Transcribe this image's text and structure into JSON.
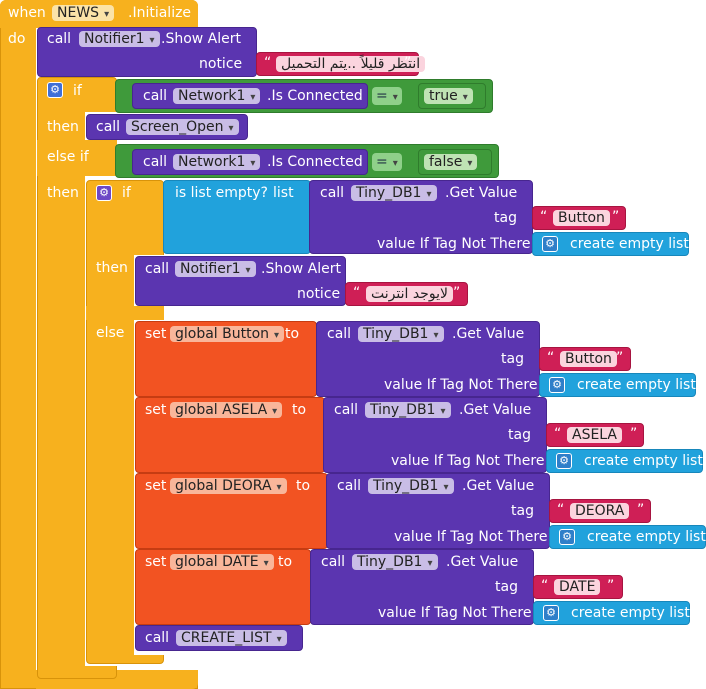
{
  "event": {
    "when": "when",
    "component": "NEWS",
    "event_name": ".Initialize",
    "do": "do"
  },
  "alert1": {
    "call": "call",
    "component": "Notifier1",
    "method": ".Show Alert",
    "param": "notice",
    "text": "انتظر قليلاً ..يتم التحميل"
  },
  "if1": {
    "if": "if",
    "then": "then",
    "else_if": "else if",
    "then2": "then"
  },
  "cond1": {
    "call": "call",
    "component": "Network1",
    "prop": ".Is Connected",
    "op": "=",
    "value": "true"
  },
  "screen_open": {
    "call": "call",
    "proc": "Screen_Open"
  },
  "cond2": {
    "call": "call",
    "component": "Network1",
    "prop": ".Is Connected",
    "op": "=",
    "value": "false"
  },
  "if2": {
    "if": "if",
    "then": "then",
    "else": "else"
  },
  "list_empty": {
    "label": "is list empty?",
    "param": "list"
  },
  "get_value_labels": {
    "call": "call",
    "component": "Tiny_DB1",
    "method": ".Get Value",
    "tag": "tag",
    "vitnt": "value If Tag Not There",
    "create": "create empty list"
  },
  "get1": {
    "tag_text": "Button"
  },
  "alert2": {
    "call": "call",
    "component": "Notifier1",
    "method": ".Show Alert",
    "param": "notice",
    "text": "لايوجد انترنت"
  },
  "sets": {
    "set": "set",
    "to": "to"
  },
  "set1": {
    "var": "global Button",
    "tag_text": "Button"
  },
  "set2": {
    "var": "global ASELA",
    "tag_text": "ASELA"
  },
  "set3": {
    "var": "global DEORA",
    "tag_text": "DEORA"
  },
  "set4": {
    "var": "global DATE",
    "tag_text": "DATE"
  },
  "create_list": {
    "call": "call",
    "proc": "CREATE_LIST"
  },
  "colors": {
    "event": "#f7b11e",
    "component": "#5b35b0",
    "logic": "#3f9a3b",
    "list": "#21a2dc",
    "variable": "#f25322",
    "text": "#cf1f56"
  }
}
